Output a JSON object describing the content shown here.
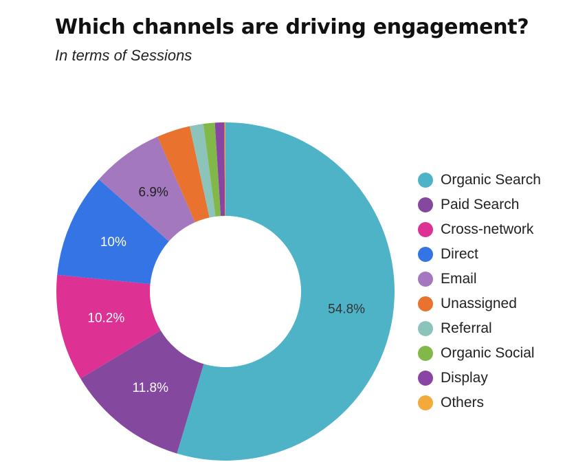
{
  "title": "Which channels are driving engagement?",
  "subtitle": "In terms of Sessions",
  "chart_data": {
    "type": "pie",
    "donut": true,
    "title": "Which channels are driving engagement?",
    "subtitle": "In terms of Sessions",
    "legend_position": "right",
    "series": [
      {
        "name": "Organic Search",
        "value": 54.8,
        "label": "54.8%",
        "color": "#4FB3C8",
        "label_color": "#333333"
      },
      {
        "name": "Paid Search",
        "value": 11.8,
        "label": "11.8%",
        "color": "#84489E",
        "label_color": "#ffffff"
      },
      {
        "name": "Cross-network",
        "value": 10.2,
        "label": "10.2%",
        "color": "#DD3293",
        "label_color": "#ffffff"
      },
      {
        "name": "Direct",
        "value": 10.0,
        "label": "10%",
        "color": "#3474E4",
        "label_color": "#ffffff"
      },
      {
        "name": "Email",
        "value": 6.9,
        "label": "6.9%",
        "color": "#A378BE",
        "label_color": "#222222"
      },
      {
        "name": "Unassigned",
        "value": 3.2,
        "label": "",
        "color": "#E8722E",
        "label_color": "#222222"
      },
      {
        "name": "Referral",
        "value": 1.3,
        "label": "",
        "color": "#8CC4BB",
        "label_color": "#222222"
      },
      {
        "name": "Organic Social",
        "value": 1.1,
        "label": "",
        "color": "#82B84A",
        "label_color": "#222222"
      },
      {
        "name": "Display",
        "value": 0.9,
        "label": "",
        "color": "#8845A3",
        "label_color": "#222222"
      },
      {
        "name": "Others",
        "value": 0.1,
        "label": "",
        "color": "#F2AB3A",
        "label_color": "#222222"
      }
    ]
  }
}
